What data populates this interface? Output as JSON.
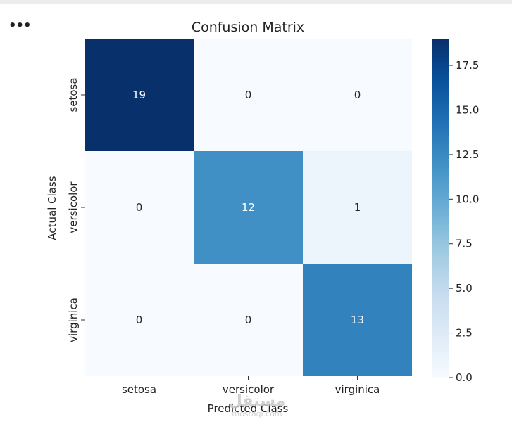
{
  "menu": {
    "ellipsis_label": "•••"
  },
  "watermark": {
    "logo_text": "مستقل",
    "site": "mostaql.com"
  },
  "chart_data": {
    "type": "heatmap",
    "title": "Confusion Matrix",
    "xlabel": "Predicted Class",
    "ylabel": "Actual Class",
    "x_categories": [
      "setosa",
      "versicolor",
      "virginica"
    ],
    "y_categories": [
      "setosa",
      "versicolor",
      "virginica"
    ],
    "values": [
      [
        19,
        0,
        0
      ],
      [
        0,
        12,
        1
      ],
      [
        0,
        0,
        13
      ]
    ],
    "colormap": "Blues",
    "color_range": [
      0,
      19
    ],
    "colorbar_ticks": [
      "0.0",
      "2.5",
      "5.0",
      "7.5",
      "10.0",
      "12.5",
      "15.0",
      "17.5"
    ],
    "annotations": true
  }
}
